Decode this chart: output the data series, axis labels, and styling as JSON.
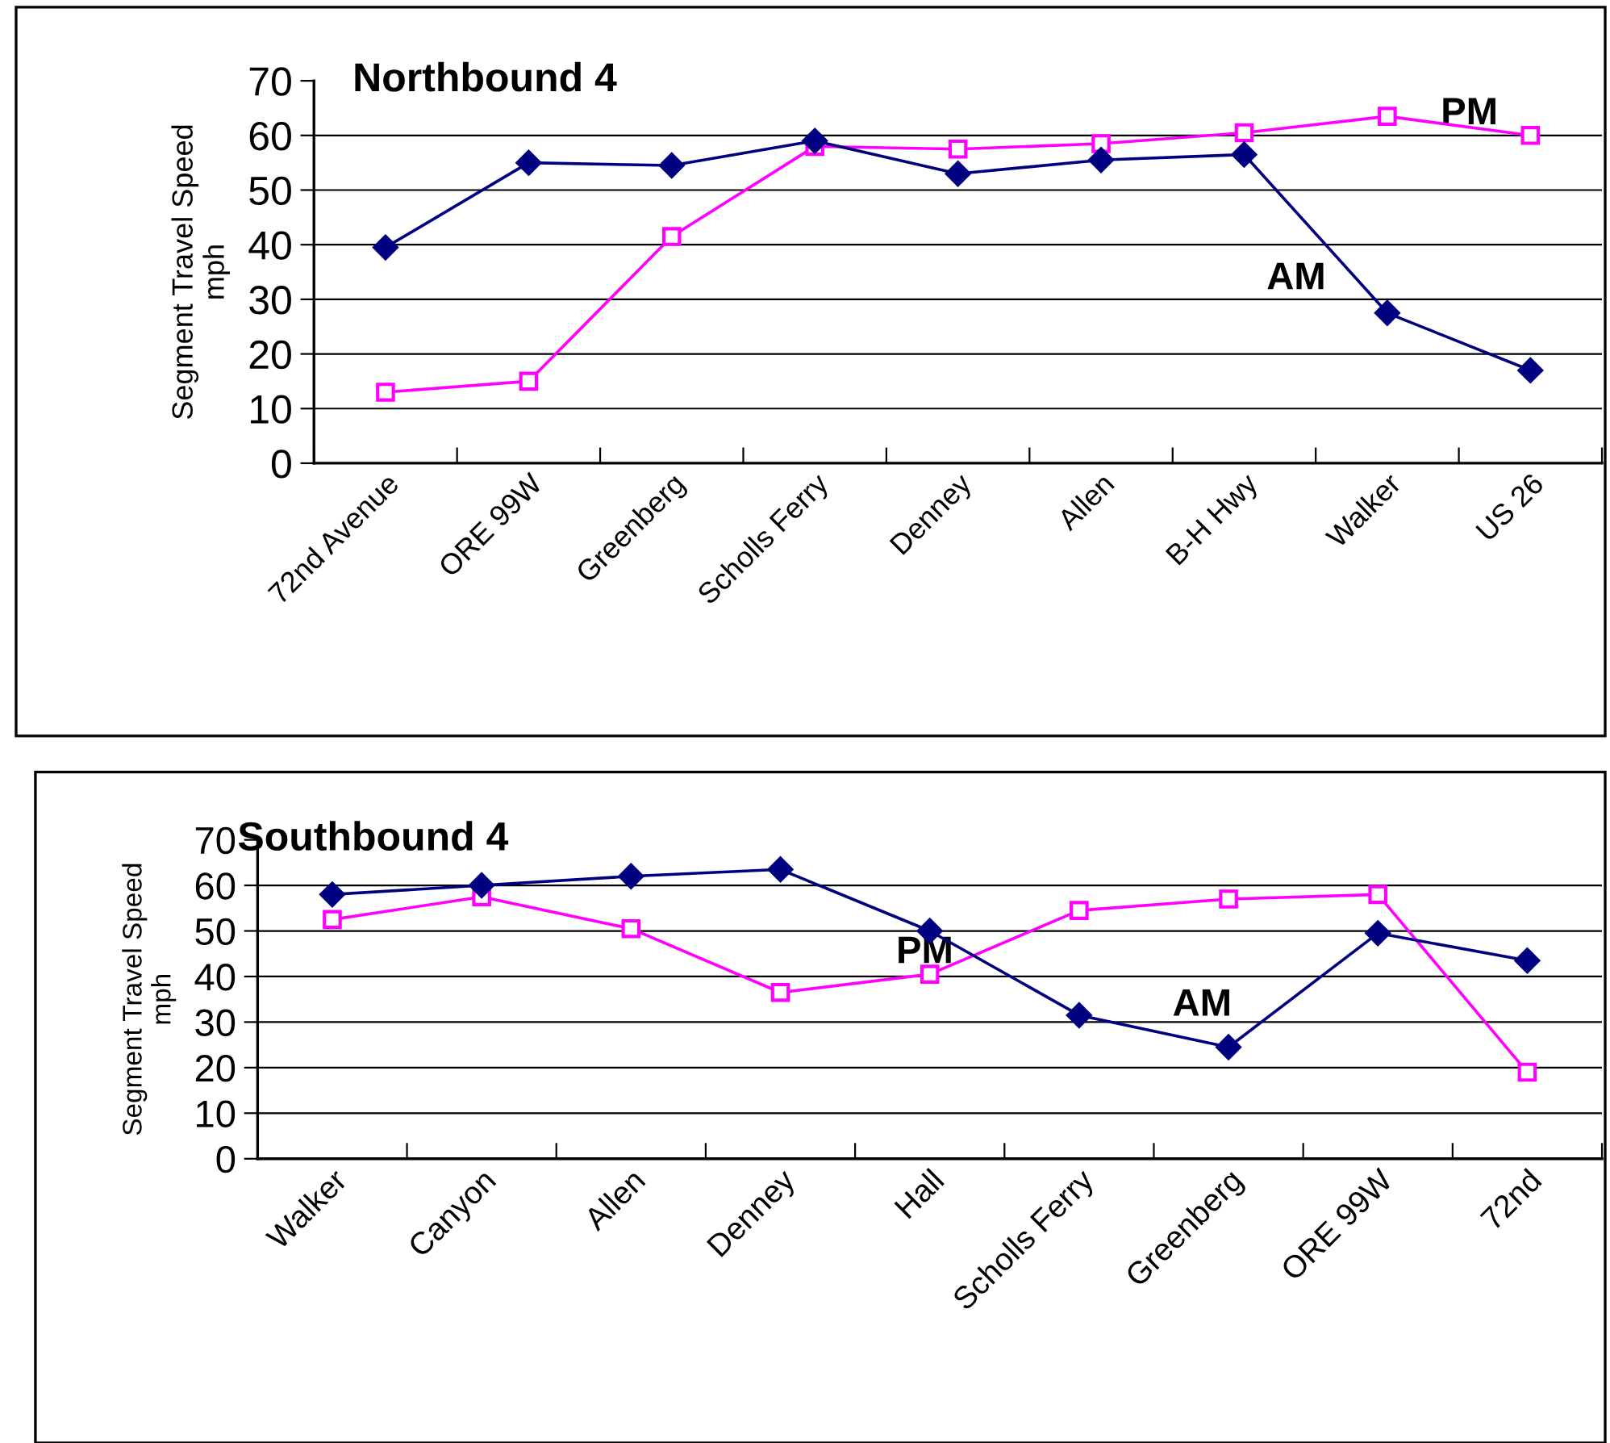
{
  "chart_data": [
    {
      "type": "line",
      "title": "Northbound 4",
      "ylabel": "Segment Travel Speed\nmph",
      "categories": [
        "72nd Avenue",
        "ORE 99W",
        "Greenberg",
        "Scholls Ferry",
        "Denney",
        "Allen",
        "B-H Hwy",
        "Walker",
        "US 26"
      ],
      "series": [
        {
          "name": "AM",
          "color": "#000080",
          "marker": "diamond",
          "values": [
            39.5,
            55,
            54.5,
            59,
            53,
            55.5,
            56.5,
            27.5,
            17
          ]
        },
        {
          "name": "PM",
          "color": "#ff00ff",
          "marker": "square",
          "values": [
            13,
            15,
            41.5,
            58,
            57.5,
            58.5,
            60.5,
            63.5,
            60
          ]
        }
      ],
      "ylim": [
        0,
        70
      ],
      "yticks": [
        0,
        10,
        20,
        30,
        40,
        50,
        60,
        70
      ],
      "grid": "y",
      "legend": false
    },
    {
      "type": "line",
      "title": "Southbound 4",
      "ylabel": "Segment Travel Speed\nmph",
      "categories": [
        "Walker",
        "Canyon",
        "Allen",
        "Denney",
        "Hall",
        "Scholls Ferry",
        "Greenberg",
        "ORE 99W",
        "72nd"
      ],
      "series": [
        {
          "name": "AM",
          "color": "#000080",
          "marker": "diamond",
          "values": [
            58,
            60,
            62,
            63.5,
            50,
            31.5,
            24.5,
            49.5,
            43.5
          ]
        },
        {
          "name": "PM",
          "color": "#ff00ff",
          "marker": "square",
          "values": [
            52.5,
            57.5,
            50.5,
            36.5,
            40.5,
            54.5,
            57,
            58,
            19
          ]
        }
      ],
      "ylim": [
        0,
        70
      ],
      "yticks": [
        0,
        10,
        20,
        30,
        40,
        50,
        60,
        70
      ],
      "grid": "y",
      "legend": false
    }
  ]
}
